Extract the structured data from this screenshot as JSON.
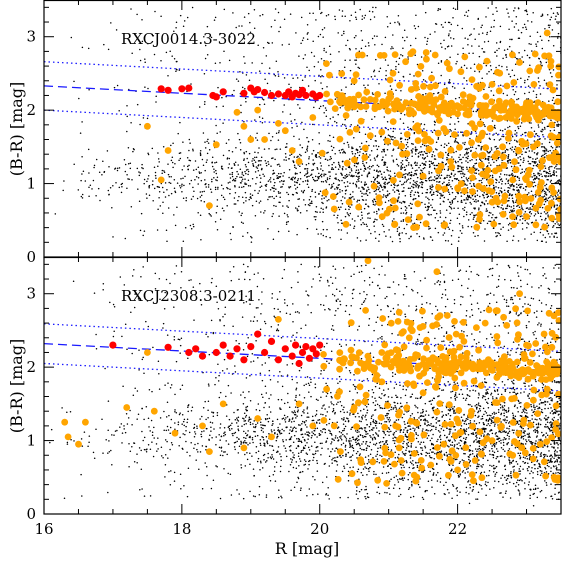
{
  "chart_data": [
    {
      "type": "scatter",
      "title": "RXCJ0014.3-3022",
      "xlabel": "",
      "ylabel": "(B-R) [mag]",
      "xlim": [
        16,
        23.5
      ],
      "ylim": [
        0,
        3.5
      ],
      "xticks": [
        "16",
        "18",
        "20",
        "22"
      ],
      "yticks": [
        "0",
        "1",
        "2",
        "3"
      ],
      "red_sequence": {
        "slope": -0.05,
        "intercept_at_R16": 2.33,
        "width": 0.15,
        "dotted_width": 0.33
      },
      "series": [
        {
          "color": "#ff0000",
          "points": [
            [
              17.7,
              2.29
            ],
            [
              17.8,
              2.27
            ],
            [
              18.0,
              2.29
            ],
            [
              18.1,
              2.3
            ],
            [
              18.45,
              2.2
            ],
            [
              18.5,
              2.18
            ],
            [
              18.6,
              2.25
            ],
            [
              18.9,
              2.23
            ],
            [
              19.0,
              2.3
            ],
            [
              19.05,
              2.25
            ],
            [
              19.1,
              2.28
            ],
            [
              19.2,
              2.24
            ],
            [
              19.3,
              2.2
            ],
            [
              19.4,
              2.22
            ],
            [
              19.5,
              2.2
            ],
            [
              19.55,
              2.25
            ],
            [
              19.6,
              2.18
            ],
            [
              19.65,
              2.23
            ],
            [
              19.7,
              2.21
            ],
            [
              19.75,
              2.27
            ],
            [
              19.8,
              2.2
            ],
            [
              19.9,
              2.22
            ],
            [
              19.95,
              2.18
            ],
            [
              20.0,
              2.2
            ]
          ]
        },
        {
          "color": "#ffa500",
          "points": [
            [
              17.7,
              1.05
            ],
            [
              17.5,
              1.78
            ],
            [
              17.8,
              1.45
            ],
            [
              18.4,
              0.7
            ],
            [
              18.5,
              1.53
            ],
            [
              18.8,
              1.97
            ],
            [
              18.9,
              1.78
            ],
            [
              19.0,
              1.6
            ],
            [
              19.1,
              2.0
            ],
            [
              19.2,
              1.6
            ],
            [
              19.4,
              1.82
            ],
            [
              19.5,
              1.72
            ],
            [
              19.6,
              1.45
            ],
            [
              19.7,
              1.3
            ],
            [
              19.9,
              1.9
            ],
            [
              20.1,
              2.22
            ],
            [
              20.3,
              2.1
            ],
            [
              20.6,
              1.85
            ],
            [
              20.8,
              2.02
            ],
            [
              20.9,
              1.7
            ],
            [
              21.0,
              2.15
            ],
            [
              21.2,
              1.4
            ],
            [
              21.3,
              1.95
            ],
            [
              21.5,
              1.1
            ],
            [
              21.6,
              2.2
            ],
            [
              21.8,
              1.75
            ],
            [
              22.0,
              1.95
            ],
            [
              22.1,
              0.9
            ],
            [
              22.3,
              1.6
            ],
            [
              22.5,
              2.35
            ],
            [
              22.6,
              1.2
            ],
            [
              22.7,
              1.9
            ],
            [
              22.9,
              0.75
            ],
            [
              23.0,
              2.1
            ],
            [
              23.1,
              1.5
            ],
            [
              23.2,
              0.95
            ],
            [
              23.3,
              3.05
            ],
            [
              23.35,
              2.6
            ],
            [
              23.4,
              1.3
            ],
            [
              22.2,
              2.1
            ],
            [
              21.4,
              2.3
            ],
            [
              20.5,
              2.4
            ],
            [
              22.8,
              1.05
            ],
            [
              23.0,
              0.55
            ],
            [
              21.9,
              1.3
            ]
          ]
        },
        {
          "color": "#000000",
          "points": []
        }
      ]
    },
    {
      "type": "scatter",
      "title": "RXCJ2308.3-0211",
      "xlabel": "R [mag]",
      "ylabel": "(B-R) [mag]",
      "xlim": [
        16,
        23.5
      ],
      "ylim": [
        0,
        3.5
      ],
      "xticks": [
        "16",
        "18",
        "20",
        "22"
      ],
      "yticks": [
        "0",
        "1",
        "2",
        "3"
      ],
      "red_sequence": {
        "slope": -0.05,
        "intercept_at_R16": 2.32,
        "width": 0.15,
        "dotted_width": 0.27
      },
      "series": [
        {
          "color": "#ff0000",
          "points": [
            [
              17.0,
              2.3
            ],
            [
              17.8,
              2.27
            ],
            [
              18.1,
              2.2
            ],
            [
              18.2,
              2.25
            ],
            [
              18.3,
              2.15
            ],
            [
              18.5,
              2.2
            ],
            [
              18.6,
              2.3
            ],
            [
              18.7,
              2.15
            ],
            [
              18.8,
              2.25
            ],
            [
              18.9,
              2.1
            ],
            [
              19.0,
              2.28
            ],
            [
              19.1,
              2.45
            ],
            [
              19.2,
              2.2
            ],
            [
              19.3,
              2.35
            ],
            [
              19.4,
              2.1
            ],
            [
              19.5,
              2.25
            ],
            [
              19.6,
              2.15
            ],
            [
              19.65,
              2.3
            ],
            [
              19.7,
              2.05
            ],
            [
              19.75,
              2.2
            ],
            [
              19.8,
              2.28
            ],
            [
              19.85,
              2.12
            ],
            [
              19.9,
              2.25
            ],
            [
              19.95,
              2.18
            ],
            [
              20.0,
              2.3
            ]
          ]
        },
        {
          "color": "#ffa500",
          "points": [
            [
              16.3,
              1.25
            ],
            [
              16.35,
              1.05
            ],
            [
              16.5,
              0.95
            ],
            [
              16.6,
              1.25
            ],
            [
              17.2,
              1.45
            ],
            [
              17.6,
              1.4
            ],
            [
              17.5,
              2.2
            ],
            [
              17.9,
              1.1
            ],
            [
              18.3,
              1.2
            ],
            [
              18.4,
              0.85
            ],
            [
              18.6,
              1.5
            ],
            [
              18.9,
              0.9
            ],
            [
              19.1,
              1.3
            ],
            [
              19.3,
              1.05
            ],
            [
              19.4,
              2.65
            ],
            [
              19.7,
              1.5
            ],
            [
              19.9,
              1.2
            ],
            [
              20.1,
              1.7
            ],
            [
              20.3,
              0.85
            ],
            [
              20.5,
              1.45
            ],
            [
              20.6,
              0.7
            ],
            [
              20.7,
              3.45
            ],
            [
              20.9,
              1.8
            ],
            [
              21.1,
              1.2
            ],
            [
              21.3,
              2.4
            ],
            [
              21.5,
              1.65
            ],
            [
              21.7,
              3.3
            ],
            [
              21.9,
              2.05
            ],
            [
              22.0,
              0.6
            ],
            [
              22.2,
              1.4
            ],
            [
              22.4,
              2.6
            ],
            [
              22.5,
              1.0
            ],
            [
              22.6,
              1.9
            ],
            [
              22.8,
              0.8
            ],
            [
              23.0,
              2.3
            ],
            [
              23.1,
              1.55
            ],
            [
              23.2,
              0.95
            ],
            [
              23.3,
              1.7
            ],
            [
              23.4,
              0.5
            ],
            [
              21.8,
              0.95
            ],
            [
              20.9,
              2.2
            ],
            [
              22.9,
              3.0
            ]
          ]
        },
        {
          "color": "#000000",
          "points": []
        }
      ]
    }
  ],
  "panel_titles": [
    "RXCJ0014.3-3022",
    "RXCJ2308.3-0211"
  ],
  "x_label": "R [mag]",
  "y_label": "(B-R) [mag]"
}
